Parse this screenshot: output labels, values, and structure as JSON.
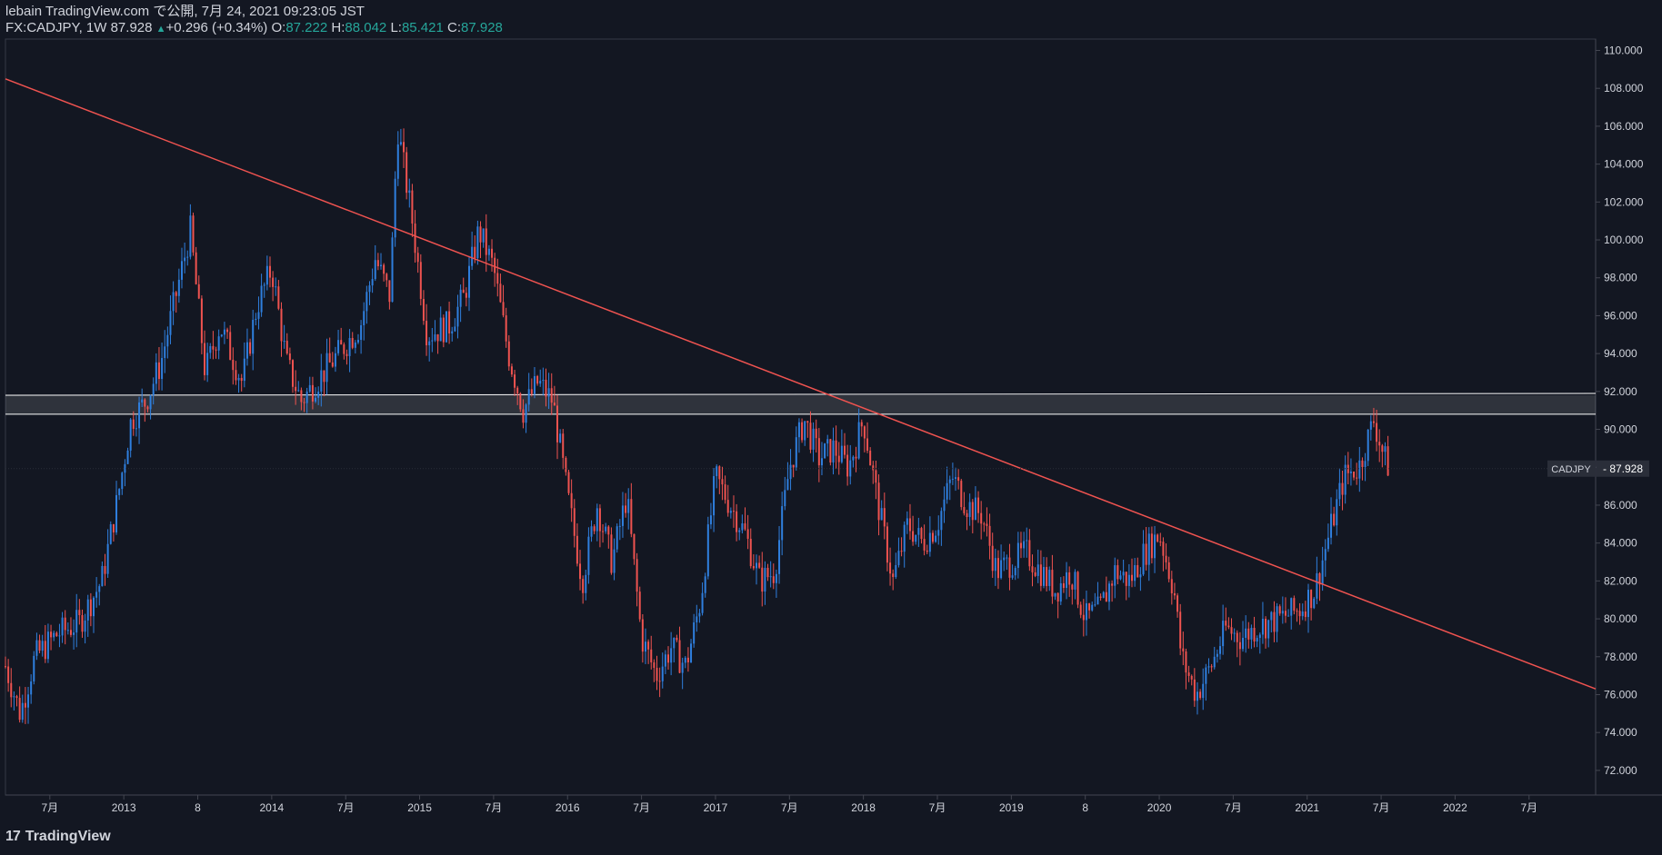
{
  "header": {
    "publisher": "lebain TradingView.com で公開, 7月 24, 2021 09:23:05 JST",
    "symbol": "FX:CADJPY, 1W",
    "last": "87.928",
    "change_arrow": "▲",
    "change": "+0.296 (+0.34%)",
    "o_label": "O:",
    "o_value": "87.222",
    "h_label": "H:",
    "h_value": "88.042",
    "l_label": "L:",
    "l_value": "85.421",
    "c_label": "C:",
    "c_value": "87.928"
  },
  "footer": {
    "brand": "TradingView",
    "logo": "17"
  },
  "colors": {
    "background": "#131722",
    "up": "#2f7fde",
    "down": "#ef5350",
    "trendline": "#ef5350",
    "zone": "#ffffff",
    "axis_text": "#d1d4dc",
    "price_tag_bg": "#2a2e39"
  },
  "chart_data": {
    "type": "candlestick",
    "symbol": "CADJPY",
    "last_price": 87.928,
    "last_price_label": "87.928",
    "y_ticks": [
      "110.000",
      "108.000",
      "106.000",
      "104.000",
      "102.000",
      "100.000",
      "98.000",
      "96.000",
      "94.000",
      "92.000",
      "90.000",
      "88.000",
      "86.000",
      "84.000",
      "82.000",
      "80.000",
      "78.000",
      "76.000",
      "74.000",
      "72.000"
    ],
    "ylim": [
      70.7,
      110.6
    ],
    "x_ticks": [
      {
        "label": "7月",
        "t": 2012.5
      },
      {
        "label": "2013",
        "t": 2013.0
      },
      {
        "label": "8",
        "t": 2013.5
      },
      {
        "label": "2014",
        "t": 2014.0
      },
      {
        "label": "7月",
        "t": 2014.5
      },
      {
        "label": "2015",
        "t": 2015.0
      },
      {
        "label": "7月",
        "t": 2015.5
      },
      {
        "label": "2016",
        "t": 2016.0
      },
      {
        "label": "7月",
        "t": 2016.5
      },
      {
        "label": "2017",
        "t": 2017.0
      },
      {
        "label": "7月",
        "t": 2017.5
      },
      {
        "label": "2018",
        "t": 2018.0
      },
      {
        "label": "7月",
        "t": 2018.5
      },
      {
        "label": "2019",
        "t": 2019.0
      },
      {
        "label": "8",
        "t": 2019.5
      },
      {
        "label": "2020",
        "t": 2020.0
      },
      {
        "label": "7月",
        "t": 2020.5
      },
      {
        "label": "2021",
        "t": 2021.0
      },
      {
        "label": "7月",
        "t": 2021.5
      },
      {
        "label": "2022",
        "t": 2022.0
      },
      {
        "label": "7月",
        "t": 2022.5
      }
    ],
    "xlim": [
      2012.2,
      2022.95
    ],
    "trend_line": {
      "t1": 2012.2,
      "p1": 108.5,
      "t2": 2022.95,
      "p2": 76.3
    },
    "resistance_zone": {
      "low": 90.8,
      "high": 91.8
    },
    "price_path": [
      [
        2012.2,
        77.5
      ],
      [
        2012.3,
        75.0
      ],
      [
        2012.4,
        78.0
      ],
      [
        2012.55,
        79.2
      ],
      [
        2012.7,
        79.8
      ],
      [
        2012.85,
        82.0
      ],
      [
        2012.95,
        86.0
      ],
      [
        2013.05,
        90.5
      ],
      [
        2013.15,
        91.5
      ],
      [
        2013.25,
        93.5
      ],
      [
        2013.35,
        97.0
      ],
      [
        2013.45,
        100.5
      ],
      [
        2013.55,
        93.0
      ],
      [
        2013.65,
        95.5
      ],
      [
        2013.8,
        92.5
      ],
      [
        2013.9,
        96.5
      ],
      [
        2014.0,
        98.5
      ],
      [
        2014.1,
        93.5
      ],
      [
        2014.2,
        91.5
      ],
      [
        2014.3,
        92.5
      ],
      [
        2014.45,
        94.0
      ],
      [
        2014.6,
        95.5
      ],
      [
        2014.7,
        99.0
      ],
      [
        2014.8,
        97.0
      ],
      [
        2014.85,
        106.0
      ],
      [
        2014.95,
        101.0
      ],
      [
        2015.05,
        95.0
      ],
      [
        2015.2,
        95.5
      ],
      [
        2015.3,
        97.0
      ],
      [
        2015.4,
        100.5
      ],
      [
        2015.5,
        98.5
      ],
      [
        2015.6,
        94.0
      ],
      [
        2015.7,
        91.0
      ],
      [
        2015.8,
        92.5
      ],
      [
        2015.9,
        91.5
      ],
      [
        2016.0,
        86.5
      ],
      [
        2016.1,
        82.0
      ],
      [
        2016.2,
        86.0
      ],
      [
        2016.3,
        83.0
      ],
      [
        2016.4,
        86.5
      ],
      [
        2016.5,
        79.0
      ],
      [
        2016.6,
        77.0
      ],
      [
        2016.7,
        78.5
      ],
      [
        2016.8,
        77.5
      ],
      [
        2016.9,
        81.0
      ],
      [
        2017.0,
        87.5
      ],
      [
        2017.1,
        86.0
      ],
      [
        2017.2,
        84.5
      ],
      [
        2017.3,
        82.0
      ],
      [
        2017.4,
        82.5
      ],
      [
        2017.5,
        88.0
      ],
      [
        2017.6,
        90.5
      ],
      [
        2017.7,
        88.5
      ],
      [
        2017.8,
        89.0
      ],
      [
        2017.9,
        88.0
      ],
      [
        2018.0,
        90.5
      ],
      [
        2018.1,
        86.0
      ],
      [
        2018.2,
        82.0
      ],
      [
        2018.3,
        85.0
      ],
      [
        2018.4,
        84.0
      ],
      [
        2018.5,
        85.0
      ],
      [
        2018.6,
        87.5
      ],
      [
        2018.7,
        86.0
      ],
      [
        2018.8,
        85.5
      ],
      [
        2018.9,
        82.5
      ],
      [
        2019.0,
        83.0
      ],
      [
        2019.1,
        83.5
      ],
      [
        2019.2,
        82.5
      ],
      [
        2019.3,
        81.5
      ],
      [
        2019.4,
        82.5
      ],
      [
        2019.5,
        80.0
      ],
      [
        2019.6,
        80.5
      ],
      [
        2019.7,
        82.5
      ],
      [
        2019.8,
        82.0
      ],
      [
        2019.9,
        83.5
      ],
      [
        2020.0,
        84.5
      ],
      [
        2020.1,
        81.5
      ],
      [
        2020.15,
        78.0
      ],
      [
        2020.25,
        76.0
      ],
      [
        2020.35,
        77.5
      ],
      [
        2020.45,
        79.5
      ],
      [
        2020.55,
        79.0
      ],
      [
        2020.65,
        79.5
      ],
      [
        2020.8,
        80.0
      ],
      [
        2020.95,
        80.5
      ],
      [
        2021.05,
        81.5
      ],
      [
        2021.15,
        84.5
      ],
      [
        2021.25,
        87.5
      ],
      [
        2021.35,
        88.0
      ],
      [
        2021.45,
        90.5
      ],
      [
        2021.52,
        88.5
      ],
      [
        2021.56,
        87.9
      ]
    ]
  }
}
